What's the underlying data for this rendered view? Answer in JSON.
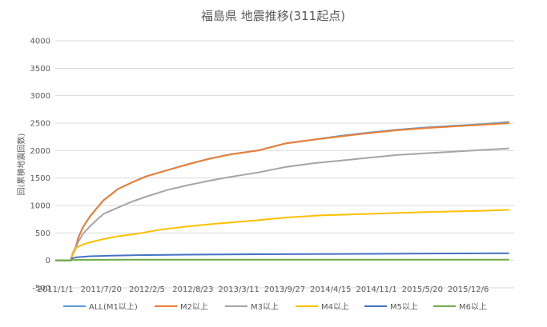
{
  "chart_data": {
    "type": "line",
    "title": "福島県 地震推移(311起点)",
    "ylabel": "回(累積地震回数)",
    "xlabel": "",
    "ylim": [
      -500,
      4000
    ],
    "yticks": [
      -500,
      0,
      500,
      1000,
      1500,
      2000,
      2500,
      3000,
      3500,
      4000
    ],
    "x_tick_labels": [
      "2011/1/1",
      "2011/7/20",
      "2012/2/5",
      "2012/8/23",
      "2013/3/11",
      "2013/9/27",
      "2014/4/15",
      "2014/11/1",
      "2015/5/20",
      "2015/12/6"
    ],
    "xlim": [
      "2011/1/1",
      "2016/6/23"
    ],
    "grid": true,
    "legend_position": "bottom",
    "series": [
      {
        "name": "ALL(M1以上)",
        "color": "#5B9BD5",
        "x": [
          "2011/1/1",
          "2011/3/11",
          "2011/3/12",
          "2011/3/20",
          "2011/4/1",
          "2011/4/10",
          "2011/5/1",
          "2011/6/1",
          "2011/7/1",
          "2011/8/1",
          "2011/9/1",
          "2011/10/1",
          "2011/12/1",
          "2012/2/1",
          "2012/5/1",
          "2012/8/1",
          "2012/11/1",
          "2013/2/1",
          "2013/6/1",
          "2013/10/1",
          "2014/2/1",
          "2014/6/1",
          "2014/10/1",
          "2015/2/1",
          "2015/6/1",
          "2015/10/1",
          "2016/2/1",
          "2016/6/1"
        ],
        "values": [
          0,
          0,
          50,
          150,
          250,
          400,
          600,
          800,
          950,
          1100,
          1200,
          1300,
          1420,
          1530,
          1640,
          1750,
          1850,
          1930,
          2000,
          2130,
          2200,
          2270,
          2330,
          2380,
          2420,
          2450,
          2480,
          2520
        ]
      },
      {
        "name": "M2以上",
        "color": "#ED7D31",
        "x": [
          "2011/1/1",
          "2011/3/11",
          "2011/3/12",
          "2011/3/20",
          "2011/4/1",
          "2011/4/10",
          "2011/5/1",
          "2011/6/1",
          "2011/7/1",
          "2011/8/1",
          "2011/9/1",
          "2011/10/1",
          "2011/12/1",
          "2012/2/1",
          "2012/5/1",
          "2012/8/1",
          "2012/11/1",
          "2013/2/1",
          "2013/6/1",
          "2013/10/1",
          "2014/2/1",
          "2014/6/1",
          "2014/10/1",
          "2015/2/1",
          "2015/6/1",
          "2015/10/1",
          "2016/2/1",
          "2016/6/1"
        ],
        "values": [
          0,
          0,
          50,
          150,
          250,
          400,
          600,
          800,
          950,
          1100,
          1200,
          1300,
          1420,
          1530,
          1640,
          1750,
          1850,
          1930,
          2000,
          2130,
          2200,
          2260,
          2320,
          2370,
          2410,
          2440,
          2470,
          2500
        ]
      },
      {
        "name": "M3以上",
        "color": "#A5A5A5",
        "x": [
          "2011/1/1",
          "2011/3/11",
          "2011/3/12",
          "2011/3/20",
          "2011/4/1",
          "2011/4/10",
          "2011/5/1",
          "2011/6/1",
          "2011/7/1",
          "2011/8/1",
          "2011/10/1",
          "2011/12/1",
          "2012/2/1",
          "2012/5/1",
          "2012/8/1",
          "2012/11/1",
          "2013/2/1",
          "2013/6/1",
          "2013/10/1",
          "2014/2/1",
          "2014/6/1",
          "2014/10/1",
          "2015/2/1",
          "2015/6/1",
          "2015/10/1",
          "2016/2/1",
          "2016/6/1"
        ],
        "values": [
          0,
          0,
          40,
          120,
          220,
          330,
          480,
          620,
          740,
          850,
          960,
          1070,
          1160,
          1280,
          1370,
          1450,
          1520,
          1600,
          1700,
          1770,
          1820,
          1870,
          1920,
          1950,
          1980,
          2010,
          2040
        ]
      },
      {
        "name": "M4以上",
        "color": "#FFC000",
        "x": [
          "2011/1/1",
          "2011/3/11",
          "2011/3/12",
          "2011/3/20",
          "2011/4/1",
          "2011/5/1",
          "2011/6/1",
          "2011/8/1",
          "2011/10/1",
          "2012/1/1",
          "2012/4/1",
          "2012/8/1",
          "2012/12/1",
          "2013/5/1",
          "2013/10/1",
          "2014/3/1",
          "2014/8/1",
          "2015/1/1",
          "2015/6/1",
          "2016/1/1",
          "2016/6/1"
        ],
        "values": [
          0,
          0,
          60,
          150,
          230,
          290,
          330,
          390,
          440,
          490,
          560,
          620,
          670,
          720,
          780,
          820,
          840,
          860,
          880,
          900,
          920
        ]
      },
      {
        "name": "M5以上",
        "color": "#4472C4",
        "x": [
          "2011/1/1",
          "2011/3/11",
          "2011/3/12",
          "2011/4/1",
          "2011/6/1",
          "2011/9/1",
          "2012/1/1",
          "2012/8/1",
          "2013/6/1",
          "2014/6/1",
          "2015/6/1",
          "2016/6/1"
        ],
        "values": [
          0,
          0,
          30,
          55,
          75,
          85,
          95,
          105,
          112,
          118,
          125,
          130
        ]
      },
      {
        "name": "M6以上",
        "color": "#70AD47",
        "x": [
          "2011/1/1",
          "2011/3/11",
          "2011/3/12",
          "2011/5/1",
          "2012/1/1",
          "2016/6/1"
        ],
        "values": [
          0,
          0,
          8,
          10,
          12,
          14
        ]
      }
    ]
  }
}
